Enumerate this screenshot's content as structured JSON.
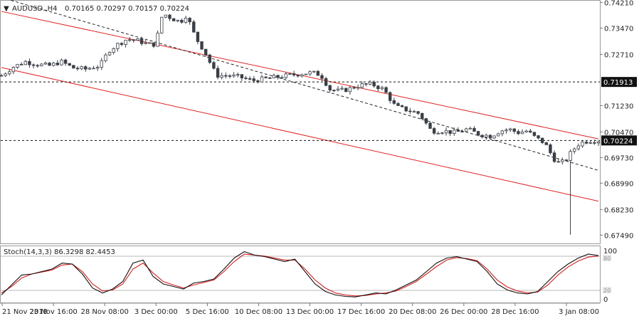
{
  "header": {
    "symbol": "AUDUSD.,H4",
    "ohlc": "0.70165 0.70297 0.70157 0.70224"
  },
  "indicator": {
    "label": "Stoch(14,3,3) 86.3298 82.4453",
    "scale_top": "100",
    "scale_80": "80",
    "scale_20": "20",
    "scale_bottom": "0"
  },
  "colors": {
    "candle": "#3a3f47",
    "channel": "#e02222",
    "stoch_main": "#111111",
    "stoch_signal": "#d42020",
    "hline": "#111111",
    "label_bg": "#111111",
    "label_fg": "#ffffff"
  },
  "chart_data": {
    "type": "candlestick",
    "symbol": "AUDUSD",
    "timeframe": "H4",
    "price_ticks": [
      "0.74210",
      "0.73470",
      "0.72710",
      "0.71913",
      "0.71230",
      "0.70470",
      "0.70224",
      "0.69730",
      "0.68990",
      "0.68230",
      "0.67490"
    ],
    "price_range": [
      0.6725,
      0.7428
    ],
    "time_labels": [
      "21 Nov 2018",
      "23 Nov 16:00",
      "28 Nov 08:00",
      "3 Dec 00:00",
      "5 Dec 16:00",
      "10 Dec 08:00",
      "13 Dec 00:00",
      "17 Dec 16:00",
      "20 Dec 08:00",
      "26 Dec 00:00",
      "28 Dec 16:00",
      "3 Jan 08:00"
    ],
    "horizontal_levels": [
      {
        "price": 0.71913,
        "label": "0.71913"
      },
      {
        "price": 0.70224,
        "label": "0.70224"
      }
    ],
    "channel": {
      "upper": [
        [
          0,
          0.7395
        ],
        [
          1,
          0.7027
        ]
      ],
      "lower": [
        [
          0,
          0.7233
        ],
        [
          1,
          0.6847
        ]
      ],
      "mid_dashed": [
        [
          0,
          0.7435
        ],
        [
          1,
          0.6936
        ]
      ]
    },
    "close_path": [
      [
        0,
        0.721
      ],
      [
        0.02,
        0.7235
      ],
      [
        0.04,
        0.725
      ],
      [
        0.06,
        0.7242
      ],
      [
        0.08,
        0.7238
      ],
      [
        0.1,
        0.725
      ],
      [
        0.12,
        0.7232
      ],
      [
        0.14,
        0.7228
      ],
      [
        0.155,
        0.7235
      ],
      [
        0.165,
        0.7238
      ],
      [
        0.18,
        0.7282
      ],
      [
        0.195,
        0.73
      ],
      [
        0.21,
        0.7315
      ],
      [
        0.23,
        0.731
      ],
      [
        0.245,
        0.73
      ],
      [
        0.258,
        0.73
      ],
      [
        0.27,
        0.739
      ],
      [
        0.285,
        0.7375
      ],
      [
        0.3,
        0.7365
      ],
      [
        0.31,
        0.7385
      ],
      [
        0.325,
        0.732
      ],
      [
        0.34,
        0.728
      ],
      [
        0.36,
        0.721
      ],
      [
        0.38,
        0.721
      ],
      [
        0.4,
        0.7205
      ],
      [
        0.42,
        0.7195
      ],
      [
        0.44,
        0.72
      ],
      [
        0.46,
        0.7205
      ],
      [
        0.48,
        0.721
      ],
      [
        0.5,
        0.7215
      ],
      [
        0.52,
        0.7218
      ],
      [
        0.535,
        0.7212
      ],
      [
        0.55,
        0.717
      ],
      [
        0.565,
        0.7165
      ],
      [
        0.58,
        0.717
      ],
      [
        0.6,
        0.7182
      ],
      [
        0.62,
        0.7185
      ],
      [
        0.64,
        0.717
      ],
      [
        0.66,
        0.712
      ],
      [
        0.68,
        0.711
      ],
      [
        0.7,
        0.71
      ],
      [
        0.72,
        0.705
      ],
      [
        0.74,
        0.705
      ],
      [
        0.76,
        0.7045
      ],
      [
        0.78,
        0.7055
      ],
      [
        0.8,
        0.704
      ],
      [
        0.82,
        0.7035
      ],
      [
        0.835,
        0.705
      ],
      [
        0.85,
        0.7055
      ],
      [
        0.865,
        0.7045
      ],
      [
        0.88,
        0.705
      ],
      [
        0.895,
        0.703
      ],
      [
        0.91,
        0.7015
      ],
      [
        0.925,
        0.697
      ],
      [
        0.935,
        0.6955
      ],
      [
        0.945,
        0.6965
      ],
      [
        0.955,
        0.699
      ],
      [
        0.965,
        0.701
      ],
      [
        0.975,
        0.7018
      ],
      [
        0.985,
        0.7022
      ]
    ],
    "spike_low": 0.675,
    "stochastic": {
      "name": "Stoch(14,3,3)",
      "k_last": 86.3298,
      "d_last": 82.4453,
      "range": [
        0,
        100
      ],
      "levels": [
        80,
        20
      ],
      "k": [
        8,
        28,
        48,
        50,
        55,
        60,
        72,
        70,
        50,
        22,
        12,
        20,
        35,
        72,
        78,
        45,
        30,
        25,
        20,
        32,
        35,
        40,
        60,
        82,
        95,
        88,
        85,
        80,
        75,
        80,
        55,
        30,
        15,
        8,
        5,
        4,
        8,
        12,
        10,
        18,
        28,
        38,
        55,
        72,
        82,
        85,
        80,
        75,
        55,
        30,
        18,
        12,
        10,
        15,
        35,
        55,
        70,
        82,
        90,
        87
      ],
      "d": [
        12,
        25,
        42,
        50,
        54,
        58,
        68,
        70,
        55,
        30,
        16,
        18,
        30,
        60,
        72,
        52,
        35,
        28,
        22,
        28,
        33,
        38,
        55,
        75,
        90,
        88,
        86,
        82,
        78,
        78,
        60,
        38,
        22,
        12,
        8,
        6,
        7,
        10,
        12,
        16,
        25,
        35,
        50,
        65,
        78,
        83,
        81,
        77,
        60,
        38,
        24,
        16,
        12,
        14,
        28,
        48,
        64,
        76,
        84,
        86
      ]
    }
  }
}
